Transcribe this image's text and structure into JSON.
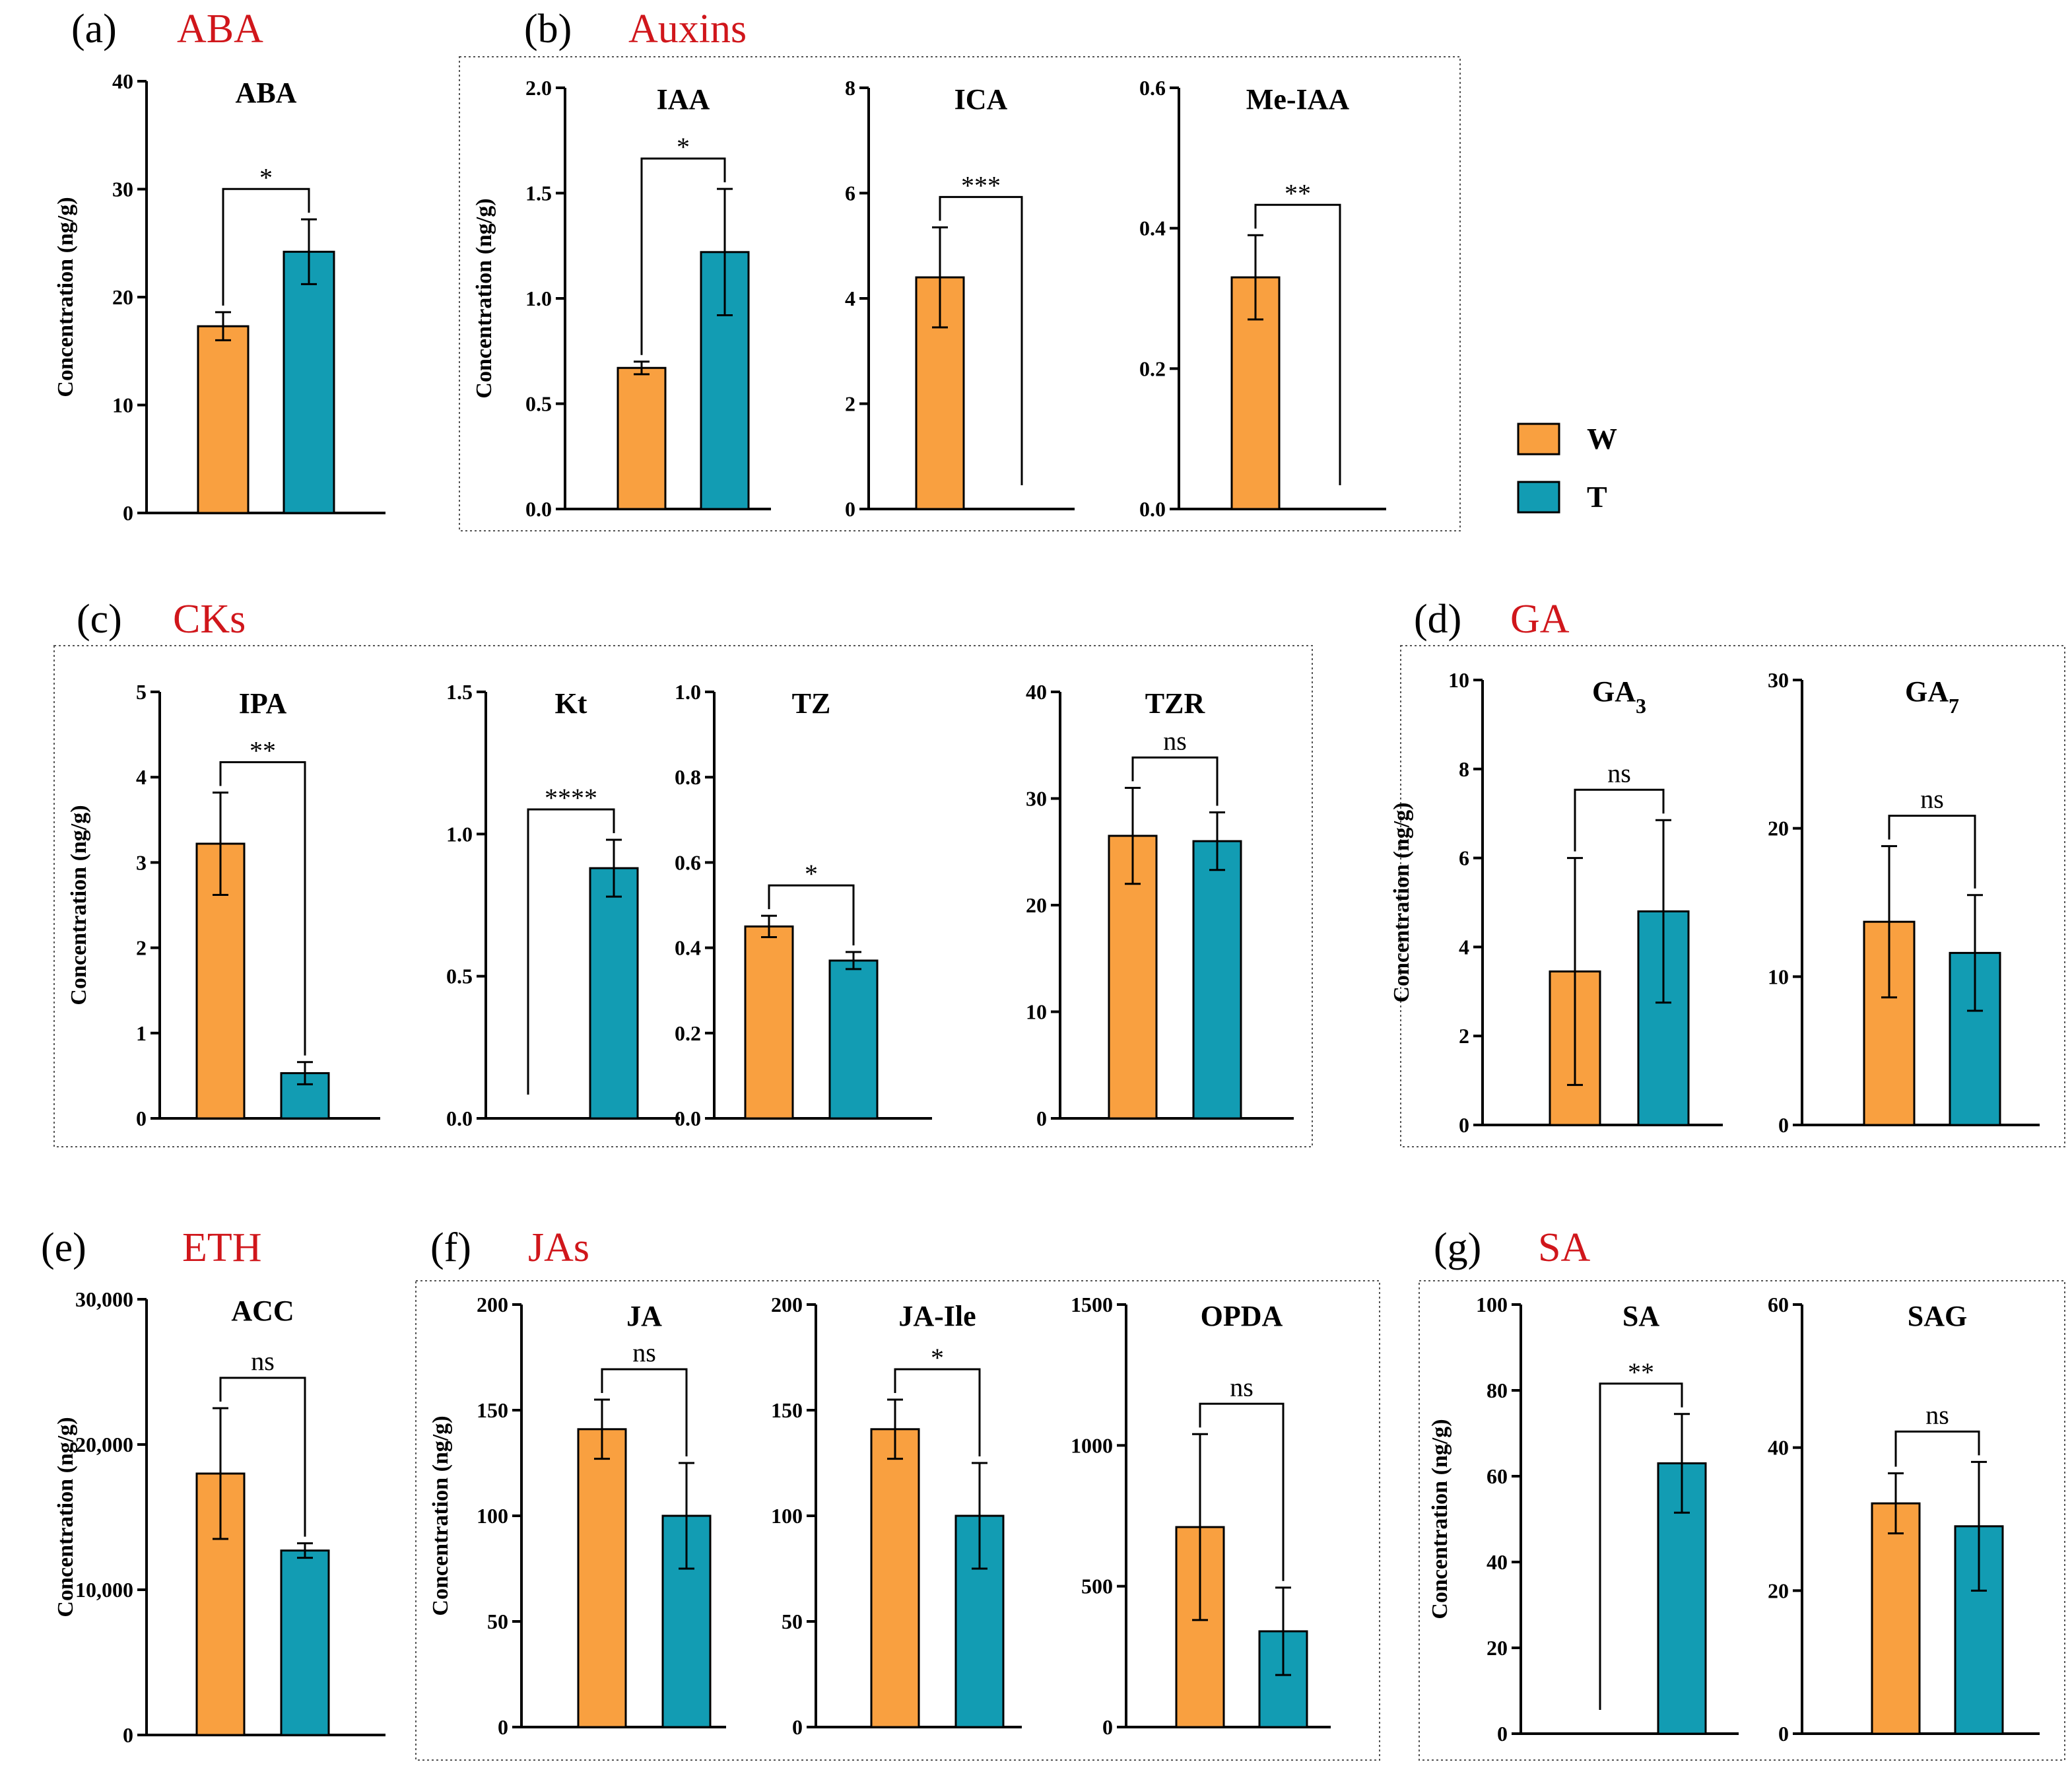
{
  "panels": [
    {
      "letter": "(a)",
      "name": "ABA"
    },
    {
      "letter": "(b)",
      "name": "Auxins"
    },
    {
      "letter": "(c)",
      "name": "CKs"
    },
    {
      "letter": "(d)",
      "name": "GA"
    },
    {
      "letter": "(e)",
      "name": "ETH"
    },
    {
      "letter": "(f)",
      "name": "JAs"
    },
    {
      "letter": "(g)",
      "name": "SA"
    }
  ],
  "legend": [
    {
      "label": "W",
      "color": "#f9a040"
    },
    {
      "label": "T",
      "color": "#129cb3"
    }
  ],
  "colors": {
    "W": "#f9a040",
    "T": "#129cb3",
    "panel_name": "#d0161b"
  },
  "chart_data": [
    {
      "type": "bar",
      "title": "ABA",
      "ylabel": "Concentration (ng/g)",
      "categories": [
        "W",
        "T"
      ],
      "values": [
        17.3,
        24.2
      ],
      "errors": [
        1.3,
        3.0
      ],
      "ylim": [
        0,
        40
      ],
      "yticks": [
        "0",
        "10",
        "20",
        "30",
        "40"
      ],
      "significance": "*"
    },
    {
      "type": "bar",
      "title": "IAA",
      "ylabel": "Concentration (ng/g)",
      "categories": [
        "W",
        "T"
      ],
      "values": [
        0.67,
        1.22
      ],
      "errors": [
        0.03,
        0.3
      ],
      "ylim": [
        0,
        2.0
      ],
      "yticks": [
        "0.0",
        "0.5",
        "1.0",
        "1.5",
        "2.0"
      ],
      "significance": "*"
    },
    {
      "type": "bar",
      "title": "ICA",
      "ylabel": "",
      "categories": [
        "W",
        "T"
      ],
      "values": [
        4.4,
        0
      ],
      "errors": [
        0.95,
        0
      ],
      "ylim": [
        0,
        8
      ],
      "yticks": [
        "0",
        "2",
        "4",
        "6",
        "8"
      ],
      "significance": "***"
    },
    {
      "type": "bar",
      "title": "Me-IAA",
      "ylabel": "",
      "categories": [
        "W",
        "T"
      ],
      "values": [
        0.33,
        0
      ],
      "errors": [
        0.06,
        0
      ],
      "ylim": [
        0,
        0.6
      ],
      "yticks": [
        "0.0",
        "0.2",
        "0.4",
        "0.6"
      ],
      "significance": "**"
    },
    {
      "type": "bar",
      "title": "IPA",
      "ylabel": "Concentration (ng/g)",
      "categories": [
        "W",
        "T"
      ],
      "values": [
        3.22,
        0.53
      ],
      "errors": [
        0.6,
        0.13
      ],
      "ylim": [
        0,
        5
      ],
      "yticks": [
        "0",
        "1",
        "2",
        "3",
        "4",
        "5"
      ],
      "significance": "**"
    },
    {
      "type": "bar",
      "title": "Kt",
      "ylabel": "",
      "categories": [
        "W",
        "T"
      ],
      "values": [
        0,
        0.88
      ],
      "errors": [
        0,
        0.1
      ],
      "ylim": [
        0,
        1.5
      ],
      "yticks": [
        "0.0",
        "0.5",
        "1.0",
        "1.5"
      ],
      "significance": "****"
    },
    {
      "type": "bar",
      "title": "TZ",
      "ylabel": "",
      "categories": [
        "W",
        "T"
      ],
      "values": [
        0.45,
        0.37
      ],
      "errors": [
        0.025,
        0.02
      ],
      "ylim": [
        0,
        1.0
      ],
      "yticks": [
        "0.0",
        "0.2",
        "0.4",
        "0.6",
        "0.8",
        "1.0"
      ],
      "significance": "*"
    },
    {
      "type": "bar",
      "title": "TZR",
      "ylabel": "",
      "categories": [
        "W",
        "T"
      ],
      "values": [
        26.5,
        26.0
      ],
      "errors": [
        4.5,
        2.7
      ],
      "ylim": [
        0,
        40
      ],
      "yticks": [
        "0",
        "10",
        "20",
        "30",
        "40"
      ],
      "significance": "ns"
    },
    {
      "type": "bar",
      "title": "GA3",
      "ylabel": "Concentration (ng/g)",
      "categories": [
        "W",
        "T"
      ],
      "values": [
        3.45,
        4.8
      ],
      "errors": [
        2.55,
        2.05
      ],
      "ylim": [
        0,
        10
      ],
      "yticks": [
        "0",
        "2",
        "4",
        "6",
        "8",
        "10"
      ],
      "significance": "ns"
    },
    {
      "type": "bar",
      "title": "GA7",
      "ylabel": "",
      "categories": [
        "W",
        "T"
      ],
      "values": [
        13.7,
        11.6
      ],
      "errors": [
        5.1,
        3.9
      ],
      "ylim": [
        0,
        30
      ],
      "yticks": [
        "0",
        "10",
        "20",
        "30"
      ],
      "significance": "ns"
    },
    {
      "type": "bar",
      "title": "ACC",
      "ylabel": "Concentration (ng/g)",
      "categories": [
        "W",
        "T"
      ],
      "values": [
        18000,
        12700
      ],
      "errors": [
        4500,
        500
      ],
      "ylim": [
        0,
        30000
      ],
      "yticks": [
        "0",
        "10,000",
        "20,000",
        "30,000"
      ],
      "significance": "ns"
    },
    {
      "type": "bar",
      "title": "JA",
      "ylabel": "Concentration (ng/g)",
      "categories": [
        "W",
        "T"
      ],
      "values": [
        141,
        100
      ],
      "errors": [
        14,
        25
      ],
      "ylim": [
        0,
        200
      ],
      "yticks": [
        "0",
        "50",
        "100",
        "150",
        "200"
      ],
      "significance": "ns"
    },
    {
      "type": "bar",
      "title": "JA-Ile",
      "ylabel": "",
      "categories": [
        "W",
        "T"
      ],
      "values": [
        141,
        100
      ],
      "errors": [
        14,
        25
      ],
      "ylim": [
        0,
        200
      ],
      "yticks": [
        "0",
        "50",
        "100",
        "150",
        "200"
      ],
      "significance": "*"
    },
    {
      "type": "bar",
      "title": "OPDA",
      "ylabel": "",
      "categories": [
        "W",
        "T"
      ],
      "values": [
        710,
        340
      ],
      "errors": [
        330,
        155
      ],
      "ylim": [
        0,
        1500
      ],
      "yticks": [
        "0",
        "500",
        "1000",
        "1500"
      ],
      "significance": "ns"
    },
    {
      "type": "bar",
      "title": "SA",
      "ylabel": "Concentration (ng/g)",
      "categories": [
        "W",
        "T"
      ],
      "values": [
        0,
        63
      ],
      "errors": [
        0,
        11.5
      ],
      "ylim": [
        0,
        100
      ],
      "yticks": [
        "0",
        "20",
        "40",
        "60",
        "80",
        "100"
      ],
      "significance": "**"
    },
    {
      "type": "bar",
      "title": "SAG",
      "ylabel": "",
      "categories": [
        "W",
        "T"
      ],
      "values": [
        32.2,
        29.0
      ],
      "errors": [
        4.2,
        9.0
      ],
      "ylim": [
        0,
        60
      ],
      "yticks": [
        "0",
        "20",
        "40",
        "60"
      ],
      "significance": "ns"
    }
  ]
}
